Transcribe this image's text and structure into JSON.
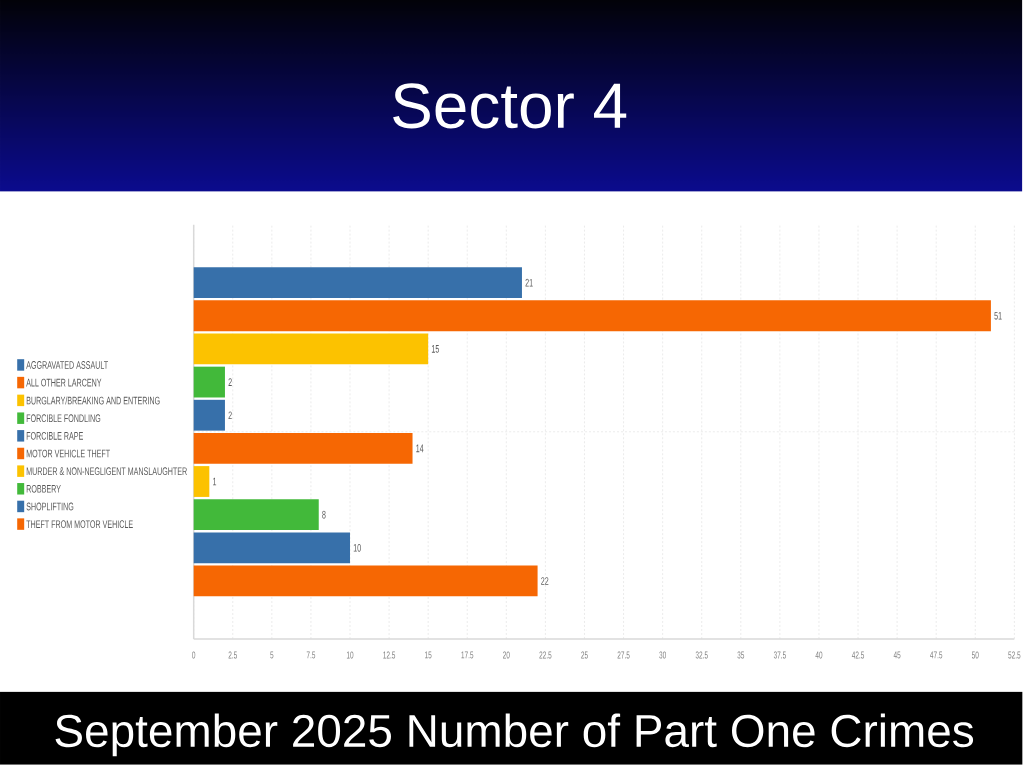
{
  "chart_data": {
    "type": "bar",
    "orientation": "horizontal",
    "title": "Sector 4",
    "subtitle": "September 2025 Number of Part One Crimes",
    "categories": [
      null
    ],
    "series": [
      {
        "name": "AGGRAVATED ASSAULT",
        "color": "#3770aa",
        "values": [
          21
        ]
      },
      {
        "name": "ALL OTHER LARCENY",
        "color": "#f66703",
        "values": [
          51
        ]
      },
      {
        "name": "BURGLARY/BREAKING AND ENTERING",
        "color": "#fcc200",
        "values": [
          15
        ]
      },
      {
        "name": "FORCIBLE FONDLING",
        "color": "#42b93a",
        "values": [
          2
        ]
      },
      {
        "name": "FORCIBLE RAPE",
        "color": "#3770aa",
        "values": [
          2
        ]
      },
      {
        "name": "MOTOR VEHICLE THEFT",
        "color": "#f66703",
        "values": [
          14
        ]
      },
      {
        "name": "MURDER & NON-NEGLIGENT MANSLAUGHTER",
        "color": "#fcc200",
        "values": [
          1
        ]
      },
      {
        "name": "ROBBERY",
        "color": "#42b93a",
        "values": [
          8
        ]
      },
      {
        "name": "SHOPLIFTING",
        "color": "#3770aa",
        "values": [
          10
        ]
      },
      {
        "name": "THEFT FROM MOTOR VEHICLE",
        "color": "#f66703",
        "values": [
          22
        ]
      }
    ],
    "xlim": [
      0,
      52.5
    ],
    "xticks": [
      0,
      2.5,
      5,
      7.5,
      10,
      12.5,
      15,
      17.5,
      20,
      22.5,
      25,
      27.5,
      30,
      32.5,
      35,
      37.5,
      40,
      42.5,
      45,
      47.5,
      50,
      52.5
    ],
    "grid": true,
    "legend": "left",
    "data_labels": true
  }
}
